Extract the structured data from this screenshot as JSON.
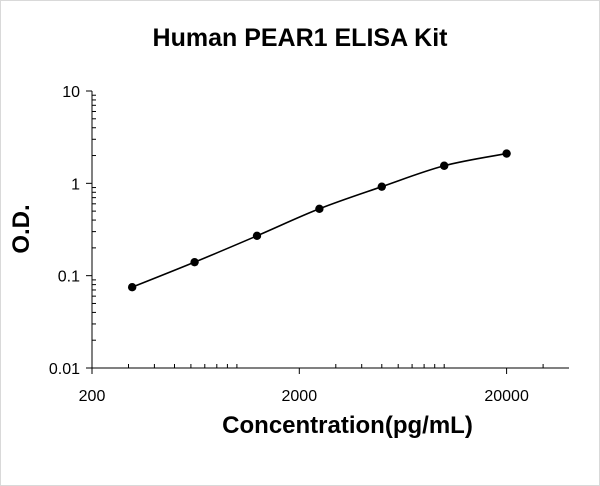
{
  "chart_data": {
    "type": "scatter",
    "title": "Human PEAR1 ELISA Kit",
    "xlabel": "Concentration(pg/mL)",
    "ylabel": "O.D.",
    "x_scale": "log",
    "y_scale": "log",
    "xlim": [
      200,
      40000
    ],
    "ylim": [
      0.01,
      10
    ],
    "x_ticks": [
      200,
      2000,
      20000
    ],
    "x_tick_labels": [
      "200",
      "2000",
      "20000"
    ],
    "y_ticks": [
      0.01,
      0.1,
      1,
      10
    ],
    "y_tick_labels": [
      "0.01",
      "0.1",
      "1",
      "10"
    ],
    "grid": false,
    "legend": "none",
    "series": [
      {
        "x": [
          312.5,
          625,
          1250,
          2500,
          5000,
          10000,
          20000
        ],
        "y": [
          0.075,
          0.14,
          0.27,
          0.53,
          0.92,
          1.55,
          2.1
        ],
        "marker": "circle",
        "line": "smooth",
        "color": "#000000"
      }
    ]
  }
}
